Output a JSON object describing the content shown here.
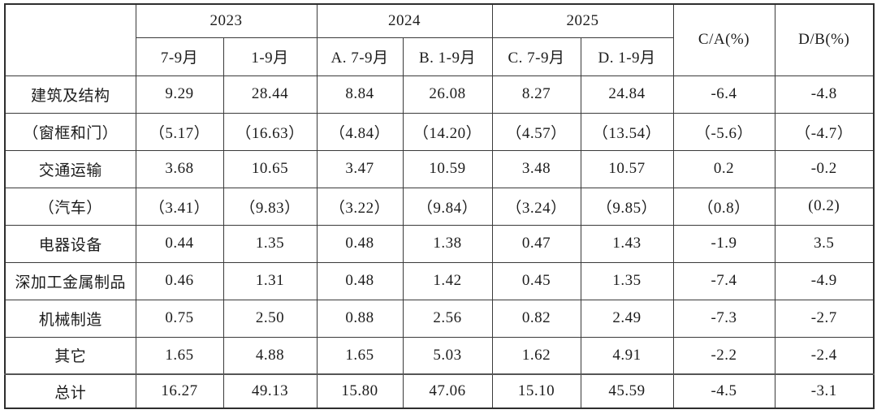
{
  "chart_data": {
    "type": "table",
    "title": "",
    "corner_label": "",
    "year_groups": [
      "2023",
      "2024",
      "2025"
    ],
    "period_headers": [
      "7-9月",
      "1-9月",
      "A. 7-9月",
      "B. 1-9月",
      "C. 7-9月",
      "D. 1-9月"
    ],
    "ratio_headers": [
      "C/A(%)",
      "D/B(%)"
    ],
    "rows": [
      {
        "label": "建筑及结构",
        "values": [
          "9.29",
          "28.44",
          "8.84",
          "26.08",
          "8.27",
          "24.84",
          "-6.4",
          "-4.8"
        ]
      },
      {
        "label": "（窗框和门）",
        "values": [
          "（5.17）",
          "（16.63）",
          "（4.84）",
          "（14.20）",
          "（4.57）",
          "（13.54）",
          "（-5.6）",
          "（-4.7）"
        ]
      },
      {
        "label": "交通运输",
        "values": [
          "3.68",
          "10.65",
          "3.47",
          "10.59",
          "3.48",
          "10.57",
          "0.2",
          "-0.2"
        ]
      },
      {
        "label": "（汽车）",
        "values": [
          "（3.41）",
          "（9.83）",
          "（3.22）",
          "（9.84）",
          "（3.24）",
          "（9.85）",
          "（0.8）",
          "(0.2)"
        ]
      },
      {
        "label": "电器设备",
        "values": [
          "0.44",
          "1.35",
          "0.48",
          "1.38",
          "0.47",
          "1.43",
          "-1.9",
          "3.5"
        ]
      },
      {
        "label": "深加工金属制品",
        "values": [
          "0.46",
          "1.31",
          "0.48",
          "1.42",
          "0.45",
          "1.35",
          "-7.4",
          "-4.9"
        ]
      },
      {
        "label": "机械制造",
        "values": [
          "0.75",
          "2.50",
          "0.88",
          "2.56",
          "0.82",
          "2.49",
          "-7.3",
          "-2.7"
        ]
      },
      {
        "label": "其它",
        "values": [
          "1.65",
          "4.88",
          "1.65",
          "5.03",
          "1.62",
          "4.91",
          "-2.2",
          "-2.4"
        ]
      },
      {
        "label": "总计",
        "values": [
          "16.27",
          "49.13",
          "15.80",
          "47.06",
          "15.10",
          "45.59",
          "-4.5",
          "-3.1"
        ]
      }
    ],
    "layout": {
      "bold_value_columns": [
        4,
        5
      ],
      "bold_year_group": "2025"
    },
    "colors": {
      "background": "#ffffff",
      "text": "#1c1c1c",
      "border": "#3a3a3a"
    }
  }
}
